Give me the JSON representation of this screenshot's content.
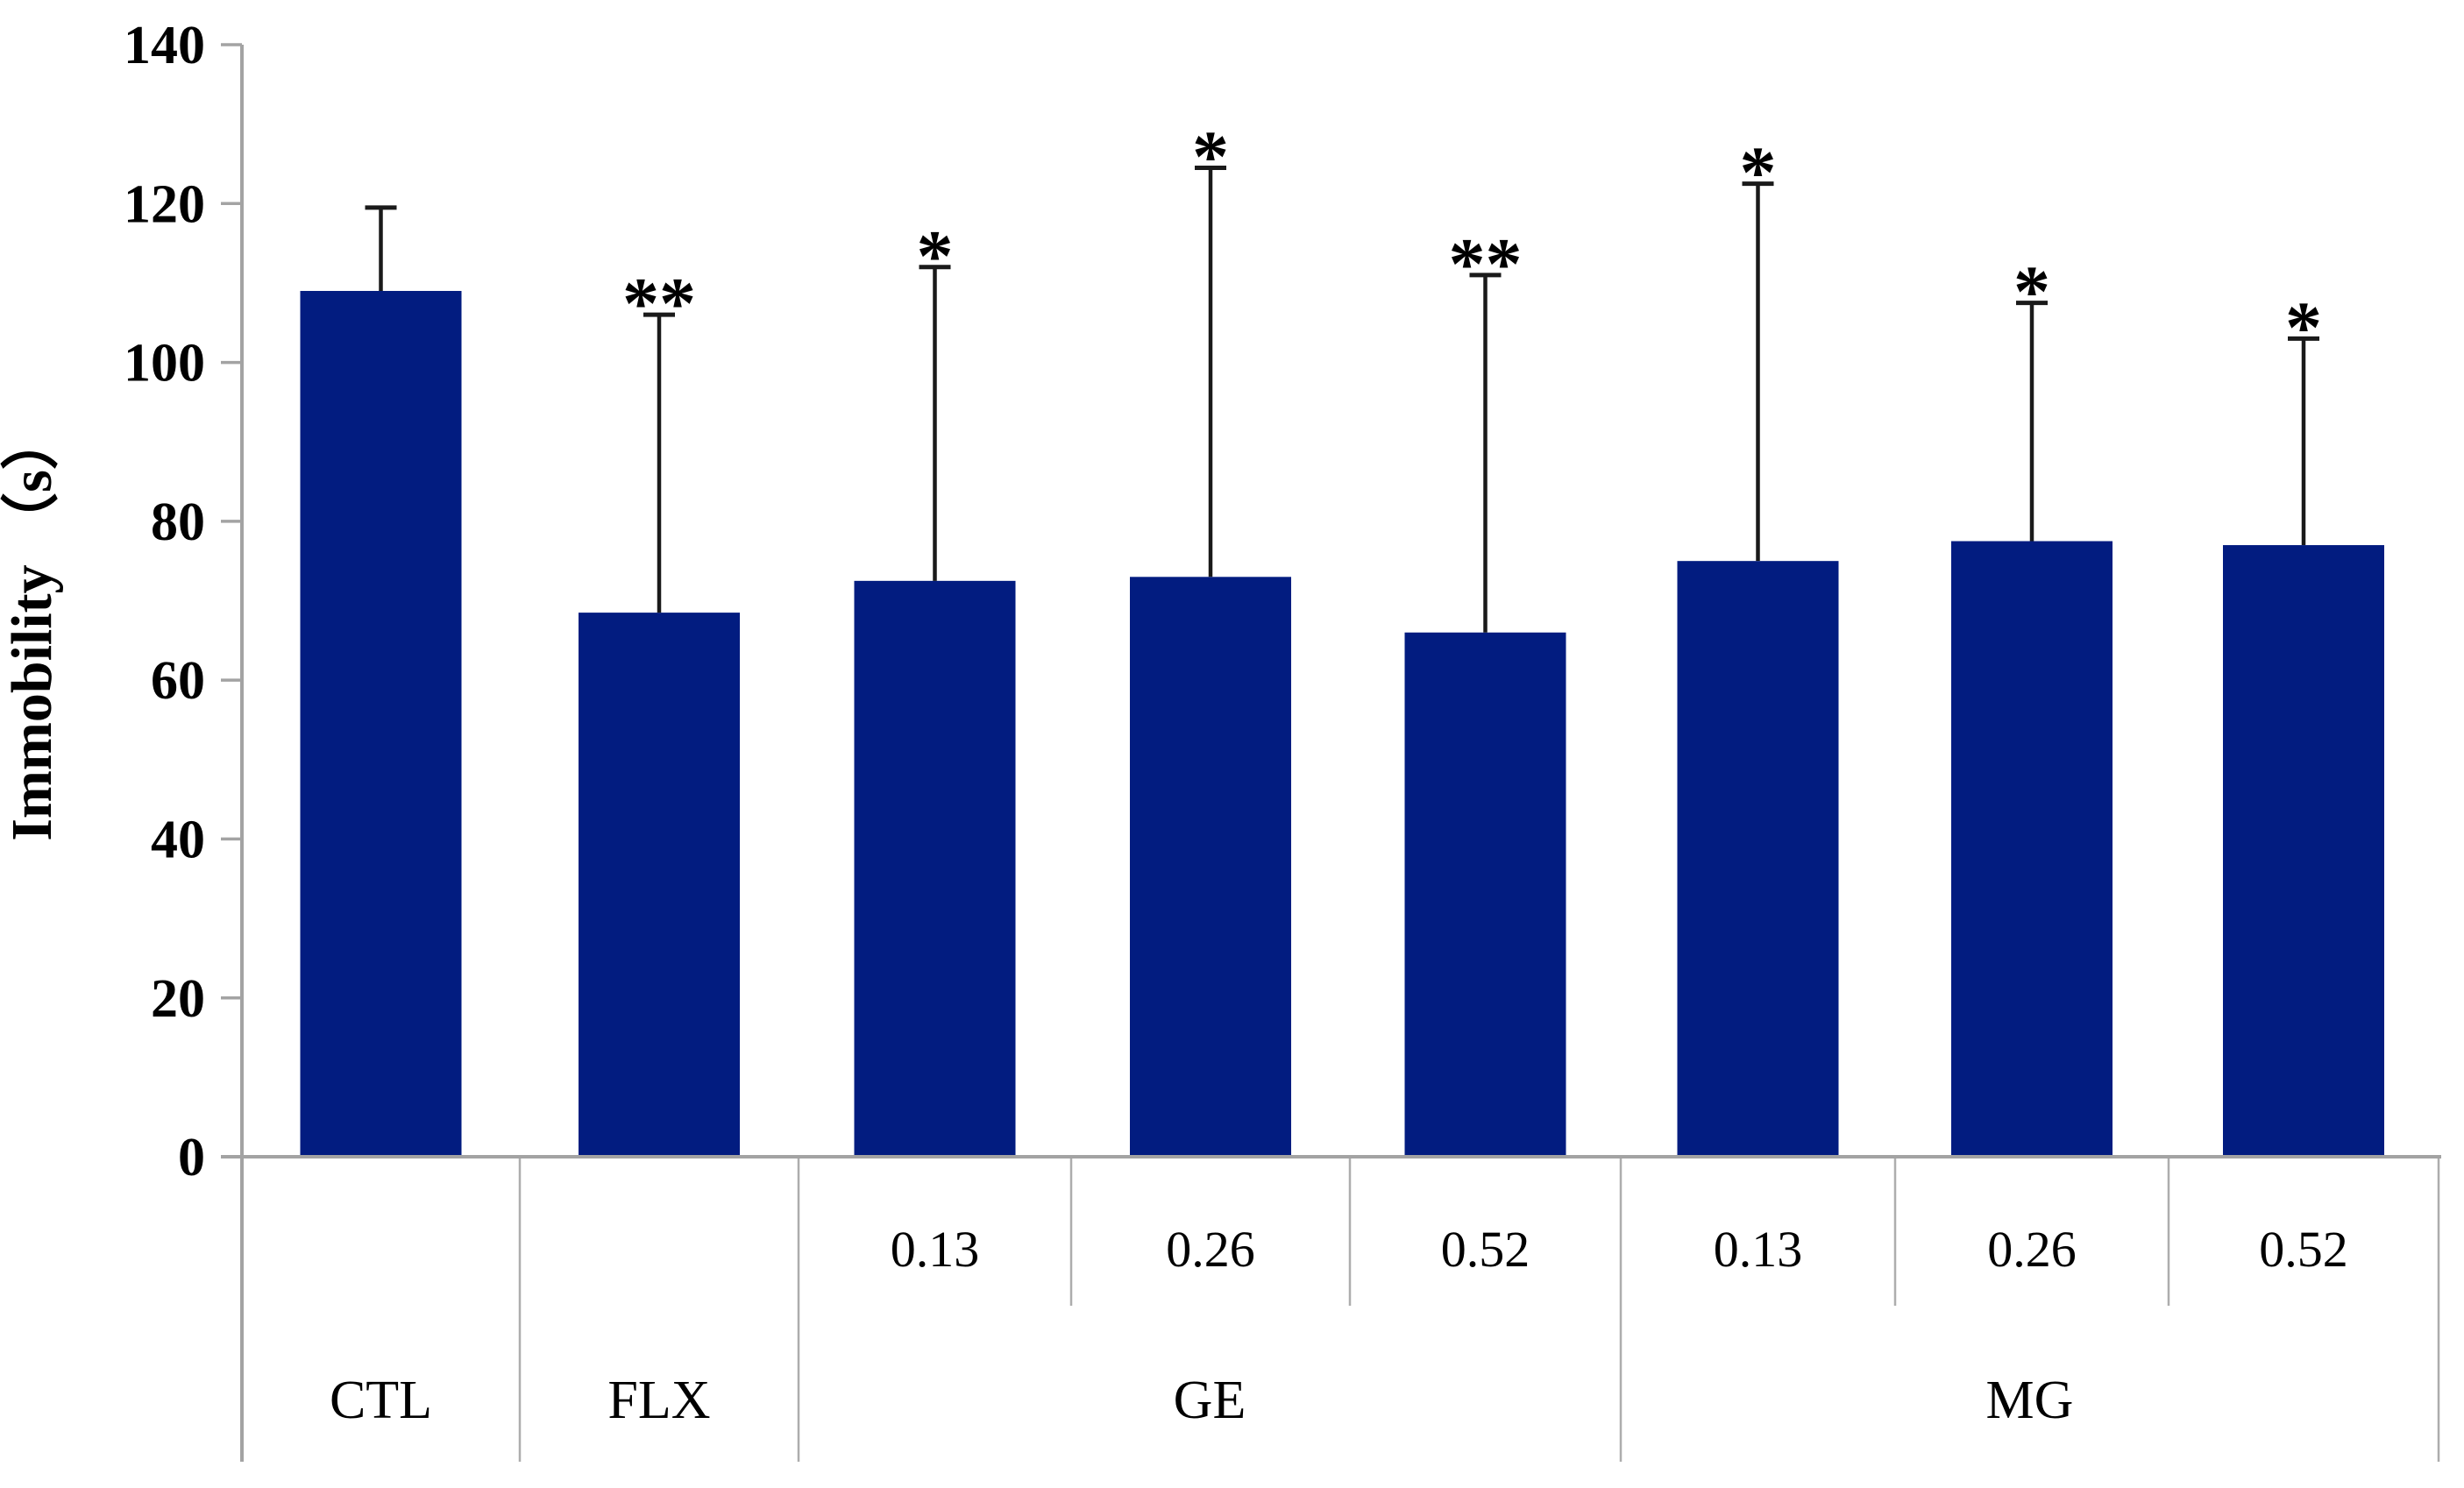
{
  "chart_data": {
    "type": "bar",
    "title": "",
    "xlabel": "",
    "ylabel": "Immobility （s）",
    "ylim": [
      0,
      140
    ],
    "yticks": [
      0,
      20,
      40,
      60,
      80,
      100,
      120,
      140
    ],
    "grid": "off",
    "legend": "none",
    "bar_color": "#021c80",
    "axis_color": "#a3a3a3",
    "table_line_color": "#adadad",
    "error_color": "#1a1a1a",
    "text_color": "#000000",
    "groups": [
      {
        "label": "CTL",
        "bars": [
          {
            "dose": "",
            "value": 109,
            "error_top": 119.5,
            "sig": ""
          }
        ]
      },
      {
        "label": "FLX",
        "bars": [
          {
            "dose": "",
            "value": 68.5,
            "error_top": 106,
            "sig": "**"
          }
        ]
      },
      {
        "label": "GE",
        "bars": [
          {
            "dose": "0.13",
            "value": 72.5,
            "error_top": 112,
            "sig": "*"
          },
          {
            "dose": "0.26",
            "value": 73,
            "error_top": 124.5,
            "sig": "*"
          },
          {
            "dose": "0.52",
            "value": 66,
            "error_top": 111,
            "sig": "**"
          }
        ]
      },
      {
        "label": "MG",
        "bars": [
          {
            "dose": "0.13",
            "value": 75,
            "error_top": 122.5,
            "sig": "*"
          },
          {
            "dose": "0.26",
            "value": 77.5,
            "error_top": 107.5,
            "sig": "*"
          },
          {
            "dose": "0.52",
            "value": 77,
            "error_top": 103,
            "sig": "*"
          }
        ]
      }
    ]
  }
}
